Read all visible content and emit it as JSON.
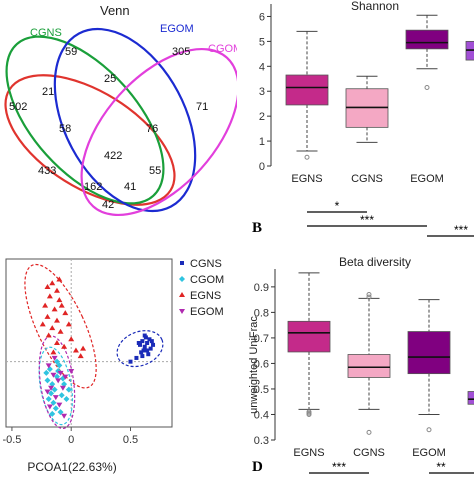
{
  "chart_data": [
    {
      "type": "venn",
      "title": "Venn",
      "sets": [
        {
          "name": "CGNS",
          "color": "#1a9f3a"
        },
        {
          "name": "EGOM",
          "color": "#1c2bd1"
        },
        {
          "name": "CGOM",
          "color": "#e23fdc"
        },
        {
          "name": "EGNS",
          "color": "#e0342e"
        }
      ],
      "region_values": [
        "59",
        "305",
        "21",
        "25",
        "71",
        "502",
        "58",
        "76",
        "422",
        "433",
        "55",
        "162",
        "41",
        "42"
      ]
    },
    {
      "type": "box",
      "title": "Shannon",
      "categories": [
        "EGNS",
        "CGNS",
        "EGOM",
        "CGOM"
      ],
      "category_labels_visible": [
        "EGNS",
        "CGNS",
        "EGOM",
        "CGO"
      ],
      "colors": [
        "#c42a8a",
        "#f4a8c4",
        "#800080",
        "#a24fd6"
      ],
      "ylim": [
        0,
        6.5
      ],
      "yticks": [
        "0",
        "1",
        "2",
        "3",
        "4",
        "5",
        "6"
      ],
      "boxes": [
        {
          "min": 0.6,
          "q1": 2.45,
          "median": 3.15,
          "q3": 3.65,
          "max": 5.4,
          "outliers": [
            0.35
          ]
        },
        {
          "min": 0.95,
          "q1": 1.55,
          "median": 2.35,
          "q3": 3.1,
          "max": 3.6,
          "outliers": []
        },
        {
          "min": 3.9,
          "q1": 4.7,
          "median": 4.95,
          "q3": 5.45,
          "max": 6.05,
          "outliers": [
            3.15
          ]
        },
        {
          "min": 3.9,
          "q1": 4.25,
          "median": 4.65,
          "q3": 5.0,
          "max": 5.9,
          "outliers": [
            2.1
          ]
        }
      ],
      "significance": [
        "*",
        "***",
        "***"
      ],
      "panel_label": "B"
    },
    {
      "type": "scatter",
      "xlabel": "PCOA1(22.63%)",
      "xticks": [
        "-0.5",
        "0",
        "0.5"
      ],
      "xlim": [
        -0.55,
        0.85
      ],
      "ylim": [
        -0.35,
        0.55
      ],
      "groups": [
        {
          "name": "CGNS",
          "color": "#1a2bb8",
          "marker": "square",
          "points": [
            [
              0.58,
              0.09
            ],
            [
              0.6,
              0.11
            ],
            [
              0.62,
              0.08
            ],
            [
              0.64,
              0.1
            ],
            [
              0.61,
              0.06
            ],
            [
              0.66,
              0.12
            ],
            [
              0.63,
              0.13
            ],
            [
              0.59,
              0.05
            ],
            [
              0.67,
              0.07
            ],
            [
              0.65,
              0.04
            ],
            [
              0.57,
              0.1
            ],
            [
              0.62,
              0.14
            ],
            [
              0.68,
              0.11
            ],
            [
              0.55,
              0.02
            ],
            [
              0.6,
              0.03
            ],
            [
              0.5,
              0.0
            ],
            [
              0.64,
              0.06
            ],
            [
              0.69,
              0.09
            ]
          ]
        },
        {
          "name": "CGOM",
          "color": "#2fc4e0",
          "marker": "diamond",
          "points": [
            [
              -0.18,
              -0.04
            ],
            [
              -0.12,
              -0.08
            ],
            [
              -0.16,
              -0.12
            ],
            [
              -0.1,
              -0.02
            ],
            [
              -0.14,
              -0.15
            ],
            [
              -0.2,
              -0.1
            ],
            [
              -0.08,
              -0.18
            ],
            [
              -0.15,
              -0.22
            ],
            [
              -0.11,
              -0.05
            ],
            [
              -0.17,
              -0.17
            ],
            [
              -0.06,
              -0.12
            ],
            [
              -0.13,
              -0.25
            ],
            [
              -0.19,
              -0.2
            ],
            [
              -0.09,
              -0.27
            ],
            [
              -0.04,
              -0.2
            ],
            [
              -0.12,
              0.0
            ],
            [
              -0.21,
              -0.06
            ],
            [
              -0.07,
              -0.09
            ],
            [
              -0.16,
              -0.28
            ],
            [
              -0.02,
              -0.15
            ]
          ]
        },
        {
          "name": "EGNS",
          "color": "#e02424",
          "marker": "triangle",
          "points": [
            [
              -0.2,
              0.4
            ],
            [
              -0.16,
              0.42
            ],
            [
              -0.12,
              0.38
            ],
            [
              -0.18,
              0.35
            ],
            [
              -0.1,
              0.33
            ],
            [
              -0.22,
              0.3
            ],
            [
              -0.14,
              0.28
            ],
            [
              -0.08,
              0.3
            ],
            [
              -0.2,
              0.24
            ],
            [
              -0.12,
              0.22
            ],
            [
              -0.05,
              0.26
            ],
            [
              -0.16,
              0.18
            ],
            [
              -0.09,
              0.16
            ],
            [
              -0.02,
              0.2
            ],
            [
              -0.19,
              0.14
            ],
            [
              -0.12,
              0.1
            ],
            [
              0.0,
              0.12
            ],
            [
              -0.06,
              0.08
            ],
            [
              0.04,
              0.06
            ],
            [
              -0.15,
              0.05
            ],
            [
              0.08,
              0.03
            ],
            [
              -0.24,
              0.2
            ],
            [
              0.1,
              0.07
            ],
            [
              -0.1,
              0.44
            ]
          ]
        },
        {
          "name": "EGOM",
          "color": "#b02ab0",
          "marker": "triangle-down",
          "points": [
            [
              -0.19,
              -0.02
            ],
            [
              -0.15,
              -0.07
            ],
            [
              -0.11,
              -0.1
            ],
            [
              -0.17,
              -0.14
            ],
            [
              -0.09,
              -0.06
            ],
            [
              -0.13,
              -0.19
            ],
            [
              -0.07,
              -0.14
            ],
            [
              -0.18,
              -0.24
            ],
            [
              -0.1,
              -0.23
            ],
            [
              -0.05,
              -0.08
            ],
            [
              -0.14,
              0.02
            ],
            [
              -0.06,
              -0.29
            ],
            [
              0.0,
              -0.05
            ],
            [
              -0.2,
              -0.16
            ]
          ]
        }
      ],
      "ellipses": [
        {
          "group": "EGNS",
          "cx": -0.09,
          "cy": 0.19,
          "rx": 0.2,
          "ry": 0.36,
          "rotate": -25
        },
        {
          "group": "CGOM",
          "cx": -0.13,
          "cy": -0.13,
          "rx": 0.13,
          "ry": 0.21,
          "rotate": -10
        },
        {
          "group": "EGOM",
          "cx": -0.12,
          "cy": -0.11,
          "rx": 0.14,
          "ry": 0.25,
          "rotate": -8
        },
        {
          "group": "CGNS",
          "cx": 0.58,
          "cy": 0.07,
          "rx": 0.2,
          "ry": 0.09,
          "rotate": -22
        }
      ]
    },
    {
      "type": "box",
      "title": "Beta diversity",
      "ylabel": "unweighted UniFrac",
      "categories": [
        "EGNS",
        "CGNS",
        "EGOM",
        "CGOM"
      ],
      "category_labels_visible": [
        "EGNS",
        "CGNS",
        "EGOM",
        "CGC"
      ],
      "colors": [
        "#c42a8a",
        "#f4a8c4",
        "#800080",
        "#a24fd6"
      ],
      "ylim": [
        0.3,
        0.97
      ],
      "yticks": [
        "0.3",
        "0.4",
        "0.5",
        "0.6",
        "0.7",
        "0.8",
        "0.9"
      ],
      "boxes": [
        {
          "min": 0.42,
          "q1": 0.645,
          "median": 0.72,
          "q3": 0.765,
          "max": 0.955,
          "outliers": [
            0.41,
            0.405,
            0.4
          ]
        },
        {
          "min": 0.42,
          "q1": 0.545,
          "median": 0.585,
          "q3": 0.635,
          "max": 0.855,
          "outliers": [
            0.87,
            0.86,
            0.33
          ]
        },
        {
          "min": 0.4,
          "q1": 0.56,
          "median": 0.625,
          "q3": 0.725,
          "max": 0.85,
          "outliers": [
            0.34
          ]
        },
        {
          "min": 0.4,
          "q1": 0.44,
          "median": 0.46,
          "q3": 0.49,
          "max": 0.54,
          "outliers": [
            0.57,
            0.6
          ]
        }
      ],
      "significance": [
        "***",
        "**"
      ],
      "panel_label": "D"
    }
  ]
}
